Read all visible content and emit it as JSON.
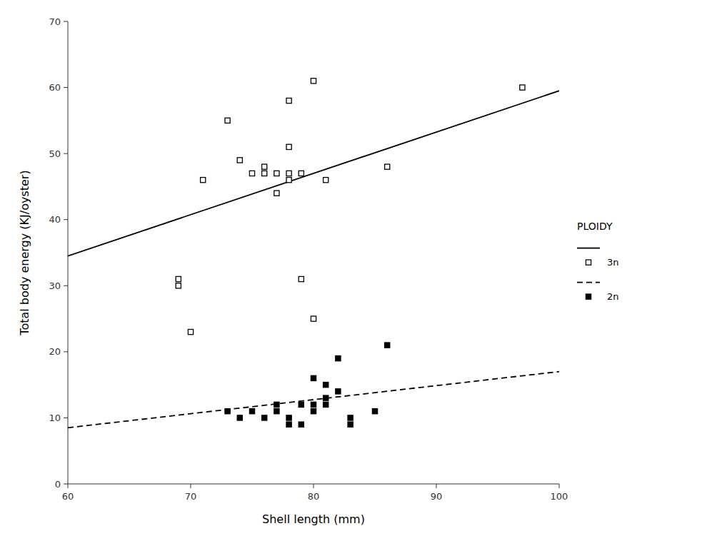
{
  "chart_data": {
    "type": "scatter",
    "xlabel": "Shell length (mm)",
    "ylabel": "Total body energy (KJ/oyster)",
    "xlim": [
      60,
      100
    ],
    "ylim": [
      0,
      70
    ],
    "xticks": [
      60,
      70,
      80,
      90,
      100
    ],
    "yticks": [
      0,
      10,
      20,
      30,
      40,
      50,
      60,
      70
    ],
    "grid": false,
    "legend": "right",
    "legend_title": "PLOIDY",
    "series": [
      {
        "name": "3n",
        "color": "#000000",
        "marker": "square-open",
        "x": [
          69,
          69,
          70,
          71,
          73,
          74,
          75,
          76,
          76,
          77,
          77,
          78,
          78,
          78,
          78,
          79,
          79,
          80,
          80,
          81,
          86,
          97
        ],
        "values": [
          30,
          31,
          23,
          46,
          55,
          49,
          47,
          48,
          47,
          44,
          47,
          47,
          46,
          58,
          51,
          31,
          47,
          61,
          25,
          46,
          48,
          60
        ],
        "fit": {
          "line_style": "solid",
          "x": [
            60,
            100
          ],
          "values": [
            34.5,
            59.5
          ]
        }
      },
      {
        "name": "2n",
        "color": "#000000",
        "marker": "square",
        "x": [
          73,
          74,
          75,
          76,
          77,
          77,
          78,
          78,
          79,
          79,
          80,
          80,
          80,
          81,
          81,
          81,
          82,
          82,
          83,
          83,
          85,
          86
        ],
        "values": [
          11,
          10,
          11,
          10,
          11,
          12,
          9,
          10,
          9,
          12,
          12,
          16,
          11,
          13,
          15,
          12,
          19,
          14,
          10,
          9,
          11,
          21
        ],
        "fit": {
          "line_style": "dashed",
          "x": [
            60,
            100
          ],
          "values": [
            8.5,
            17.0
          ]
        }
      }
    ]
  }
}
